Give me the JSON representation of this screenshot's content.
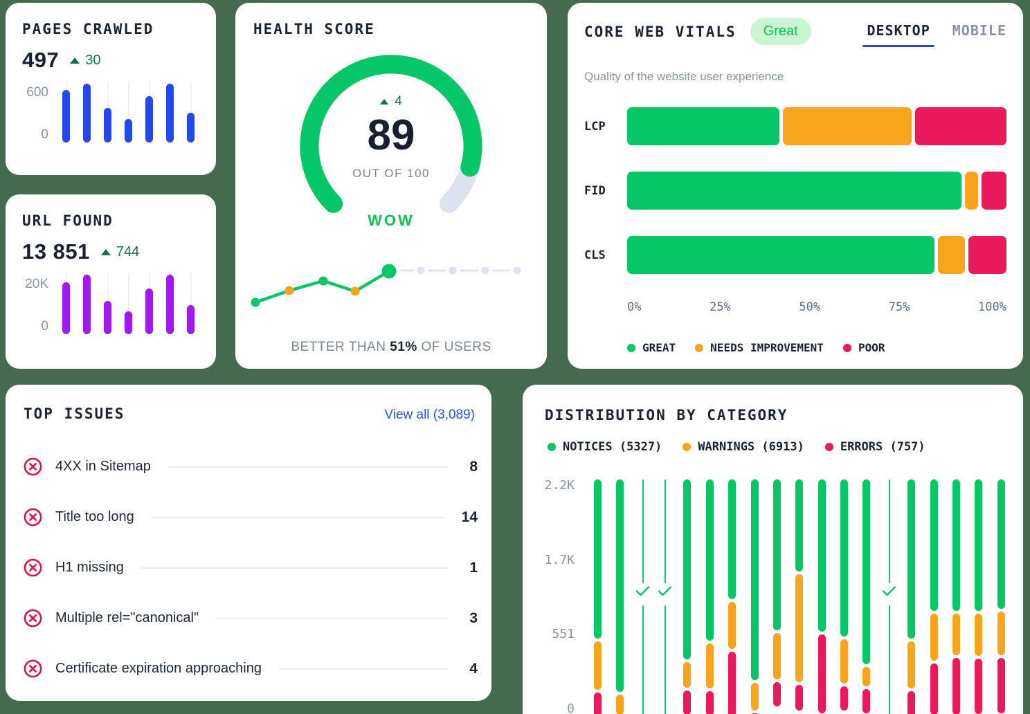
{
  "page": {
    "background": "#466A4F"
  },
  "colors": {
    "great": "#06C767",
    "needs_improvement": "#F8A51D",
    "poor": "#E9195A",
    "blue_bar": "#2548EE",
    "purple_bar": "#A01AF0",
    "link": "#2450F0",
    "text_dark": "#1B2434",
    "text_gray": "#8A93A4",
    "delta_green": "#1A6E4C",
    "gauge_track": "#DCE2F0",
    "issue_icon_red": "#DD1446",
    "tab_underline": "#2946E8",
    "badge_bg": "#C9F6D0",
    "badge_text": "#14C157"
  },
  "pages_crawled": {
    "title": "PAGES CRAWLED",
    "value": "497",
    "delta": "30",
    "chart_data": {
      "type": "bar",
      "values": [
        520,
        580,
        340,
        230,
        455,
        580,
        290
      ],
      "ylim": [
        0,
        600
      ],
      "yticks": [
        "600",
        "0"
      ],
      "color": "#2548EE"
    }
  },
  "url_found": {
    "title": "URL FOUND",
    "value": "13 851",
    "delta": "744",
    "chart_data": {
      "type": "bar",
      "values": [
        17000,
        19500,
        11000,
        7500,
        15000,
        19500,
        9500
      ],
      "ylim": [
        0,
        20000
      ],
      "yticks": [
        "20K",
        "0"
      ],
      "color": "#A01AF0"
    }
  },
  "health_score": {
    "title": "HEALTH SCORE",
    "delta": "4",
    "score": "89",
    "out_of": "OUT OF 100",
    "verdict": "WOW",
    "gauge": {
      "value": 89,
      "max": 100
    },
    "footer": {
      "prefix": "BETTER THAN",
      "percent": "51%",
      "suffix": "OF USERS"
    },
    "chart_data": {
      "type": "line",
      "title": "health score history",
      "points": [
        {
          "x": 9,
          "y": 61,
          "color": "#06C767",
          "r": 6.5
        },
        {
          "x": 58,
          "y": 44,
          "color": "#F8A51D",
          "r": 6.5
        },
        {
          "x": 107,
          "y": 30,
          "color": "#06C767",
          "r": 6.5
        },
        {
          "x": 153,
          "y": 45,
          "color": "#F8A51D",
          "r": 6.5
        },
        {
          "x": 202,
          "y": 16,
          "color": "#06C767",
          "r": 10.5
        }
      ],
      "future_points": [
        {
          "x": 248,
          "y": 15
        },
        {
          "x": 294,
          "y": 15
        },
        {
          "x": 341,
          "y": 15
        },
        {
          "x": 387,
          "y": 15
        }
      ],
      "future_color": "#DCE2F0"
    }
  },
  "core_web_vitals": {
    "title": "CORE WEB VITALS",
    "badge": "Great",
    "tabs": [
      {
        "label": "DESKTOP",
        "active": true
      },
      {
        "label": "MOBILE",
        "active": false
      }
    ],
    "subtitle": "Quality of the website user experience",
    "chart_data": {
      "type": "stacked-bar-horizontal",
      "unit": "percent",
      "x_ticks": [
        "0%",
        "25%",
        "50%",
        "75%",
        "100%"
      ],
      "rows": [
        {
          "label": "LCP",
          "great": 40,
          "needs_improvement": 34,
          "poor": 24
        },
        {
          "label": "FID",
          "great": 88,
          "needs_improvement": 3.5,
          "poor": 6.5
        },
        {
          "label": "CLS",
          "great": 80.5,
          "needs_improvement": 7,
          "poor": 10
        }
      ]
    },
    "legend": [
      {
        "label": "GREAT",
        "color": "#06C767"
      },
      {
        "label": "NEEDS IMPROVEMENT",
        "color": "#F8A51D"
      },
      {
        "label": "POOR",
        "color": "#E9195A"
      }
    ]
  },
  "top_issues": {
    "title": "TOP ISSUES",
    "view_all": "View all (3,089)",
    "issues": [
      {
        "label": "4XX in Sitemap",
        "count": "8"
      },
      {
        "label": "Title too long",
        "count": "14"
      },
      {
        "label": "H1 missing",
        "count": "1"
      },
      {
        "label": "Multiple rel=\"canonical\"",
        "count": "3"
      },
      {
        "label": "Certificate expiration approaching",
        "count": "4"
      }
    ]
  },
  "distribution": {
    "title": "DISTRIBUTION BY CATEGORY",
    "legend": [
      {
        "label": "NOTICES",
        "count": "5327",
        "color": "#06C767"
      },
      {
        "label": "WARNINGS",
        "count": "6913",
        "color": "#F8A51D"
      },
      {
        "label": "ERRORS",
        "count": "757",
        "color": "#E9195A"
      }
    ],
    "chart_data": {
      "type": "stacked-bar-vertical",
      "ymax": 2200,
      "y_ticks": [
        "2.2K",
        "1.7K",
        "551",
        "0"
      ],
      "series_order": [
        "notices",
        "warnings",
        "errors"
      ],
      "bars": [
        {
          "notices": 1490,
          "warnings": 455,
          "errors": 230
        },
        {
          "notices": 1995,
          "warnings": 190,
          "errors": 0
        },
        {
          "complete": true
        },
        {
          "complete": true
        },
        {
          "notices": 1690,
          "warnings": 240,
          "errors": 230
        },
        {
          "notices": 1510,
          "warnings": 420,
          "errors": 235
        },
        {
          "notices": 1120,
          "warnings": 440,
          "errors": 610
        },
        {
          "notices": 1880,
          "warnings": 260,
          "errors": 45
        },
        {
          "notices": 1415,
          "warnings": 435,
          "errors": 230
        },
        {
          "notices": 860,
          "warnings": 1015,
          "errors": 240
        },
        {
          "notices": 1430,
          "warnings": 0,
          "errors": 740
        },
        {
          "notices": 1475,
          "warnings": 415,
          "errors": 230
        },
        {
          "notices": 1735,
          "warnings": 180,
          "errors": 230
        },
        {
          "complete": true
        },
        {
          "notices": 1490,
          "warnings": 440,
          "errors": 240
        },
        {
          "notices": 1235,
          "warnings": 440,
          "errors": 480
        },
        {
          "notices": 1235,
          "warnings": 390,
          "errors": 535
        },
        {
          "notices": 1230,
          "warnings": 395,
          "errors": 520
        },
        {
          "notices": 1215,
          "warnings": 410,
          "errors": 520
        }
      ]
    }
  }
}
